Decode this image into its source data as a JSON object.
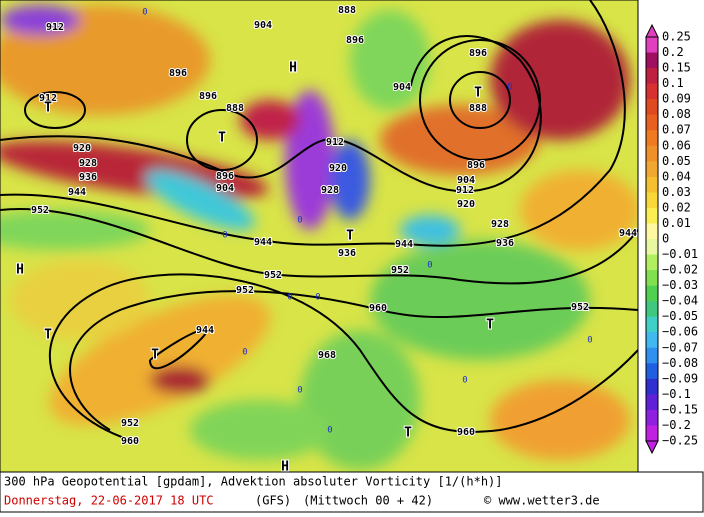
{
  "map": {
    "contour_labels": [
      "912",
      "912",
      "904",
      "888",
      "896",
      "896",
      "904",
      "888",
      "896",
      "896",
      "888",
      "912",
      "920",
      "928",
      "936",
      "944",
      "952",
      "896",
      "904",
      "920",
      "928",
      "920",
      "912",
      "904",
      "896",
      "928",
      "936",
      "944",
      "936",
      "944",
      "952",
      "952",
      "952",
      "944",
      "960",
      "968",
      "952",
      "960",
      "960",
      "952",
      "944"
    ],
    "systems": [
      "H",
      "T",
      "T",
      "T",
      "T",
      "H",
      "T",
      "T",
      "T",
      "T",
      "H"
    ],
    "zero_labels": [
      "0",
      "0",
      "0",
      "0",
      "0",
      "0",
      "0",
      "0",
      "0",
      "0",
      "0",
      "0"
    ]
  },
  "colorbar": {
    "labels": [
      "0.25",
      "0.2",
      "0.15",
      "0.1",
      "0.09",
      "0.08",
      "0.07",
      "0.06",
      "0.05",
      "0.04",
      "0.03",
      "0.02",
      "0.01",
      "0",
      "−0.01",
      "−0.02",
      "−0.03",
      "−0.04",
      "−0.05",
      "−0.06",
      "−0.07",
      "−0.08",
      "−0.09",
      "−0.1",
      "−0.15",
      "−0.2",
      "−0.25"
    ]
  },
  "footer": {
    "line1": "300 hPa Geopotential [gpdam], Advektion absoluter Vorticity [1/(h*h)]",
    "date": "Donnerstag, 22-06-2017  18 UTC",
    "model": "(GFS)",
    "run": "(Mittwoch 00 + 42)",
    "credit": "© www.wetter3.de"
  }
}
